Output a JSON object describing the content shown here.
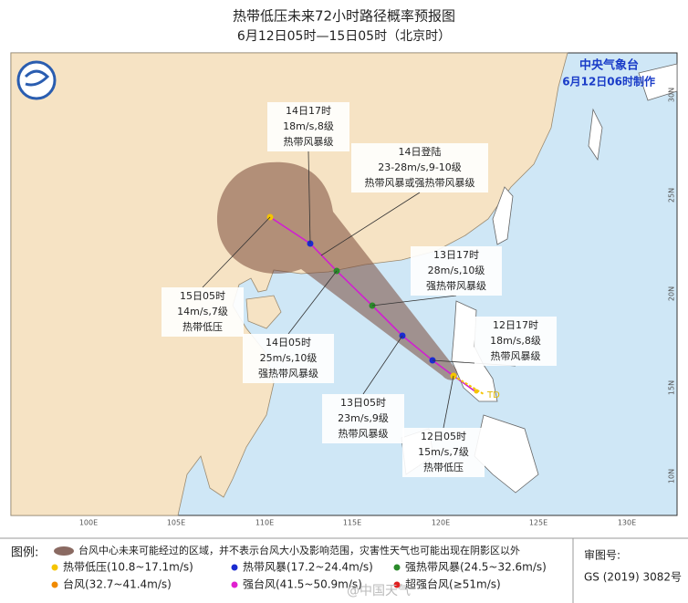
{
  "header": {
    "title": "热带低压未来72小时路径概率预报图",
    "subtitle": "6月12日05时—15日05时（北京时）"
  },
  "agency": {
    "name": "中央气象台",
    "issued": "6月12日06时制作"
  },
  "callouts": [
    {
      "lines": [
        "14日17时",
        "18m/s,8级",
        "热带风暴级"
      ]
    },
    {
      "lines": [
        "14日登陆",
        "23-28m/s,9-10级",
        "热带风暴或强热带风暴级"
      ]
    },
    {
      "lines": [
        "13日17时",
        "28m/s,10级",
        "强热带风暴级"
      ]
    },
    {
      "lines": [
        "12日17时",
        "18m/s,8级",
        "热带风暴级"
      ]
    },
    {
      "lines": [
        "15日05时",
        "14m/s,7级",
        "热带低压"
      ]
    },
    {
      "lines": [
        "14日05时",
        "25m/s,10级",
        "强热带风暴级"
      ]
    },
    {
      "lines": [
        "13日05时",
        "23m/s,9级",
        "热带风暴级"
      ]
    },
    {
      "lines": [
        "12日05时",
        "15m/s,7级",
        "热带低压"
      ]
    }
  ],
  "track_label": "TD",
  "axes": {
    "lon_labels": [
      "100E",
      "105E",
      "110E",
      "115E",
      "120E",
      "125E",
      "130E"
    ],
    "lat_labels": [
      "30N",
      "25N",
      "20N",
      "15N",
      "10N"
    ]
  },
  "legend": {
    "heading": "图例:",
    "shade_note": "台风中心未来可能经过的区域，并不表示台风大小及影响范围，灾害性天气也可能出现在阴影区以外",
    "items": [
      "热带低压(10.8~17.1m/s)",
      "热带风暴(17.2~24.4m/s)",
      "强热带风暴(24.5~32.6m/s)",
      "台风(32.7~41.4m/s)",
      "强台风(41.5~50.9m/s)",
      "超强台风(≥51m/s)"
    ]
  },
  "approval": {
    "label": "审图号:",
    "number": "GS (2019) 3082号"
  },
  "watermark": "@中国天气"
}
